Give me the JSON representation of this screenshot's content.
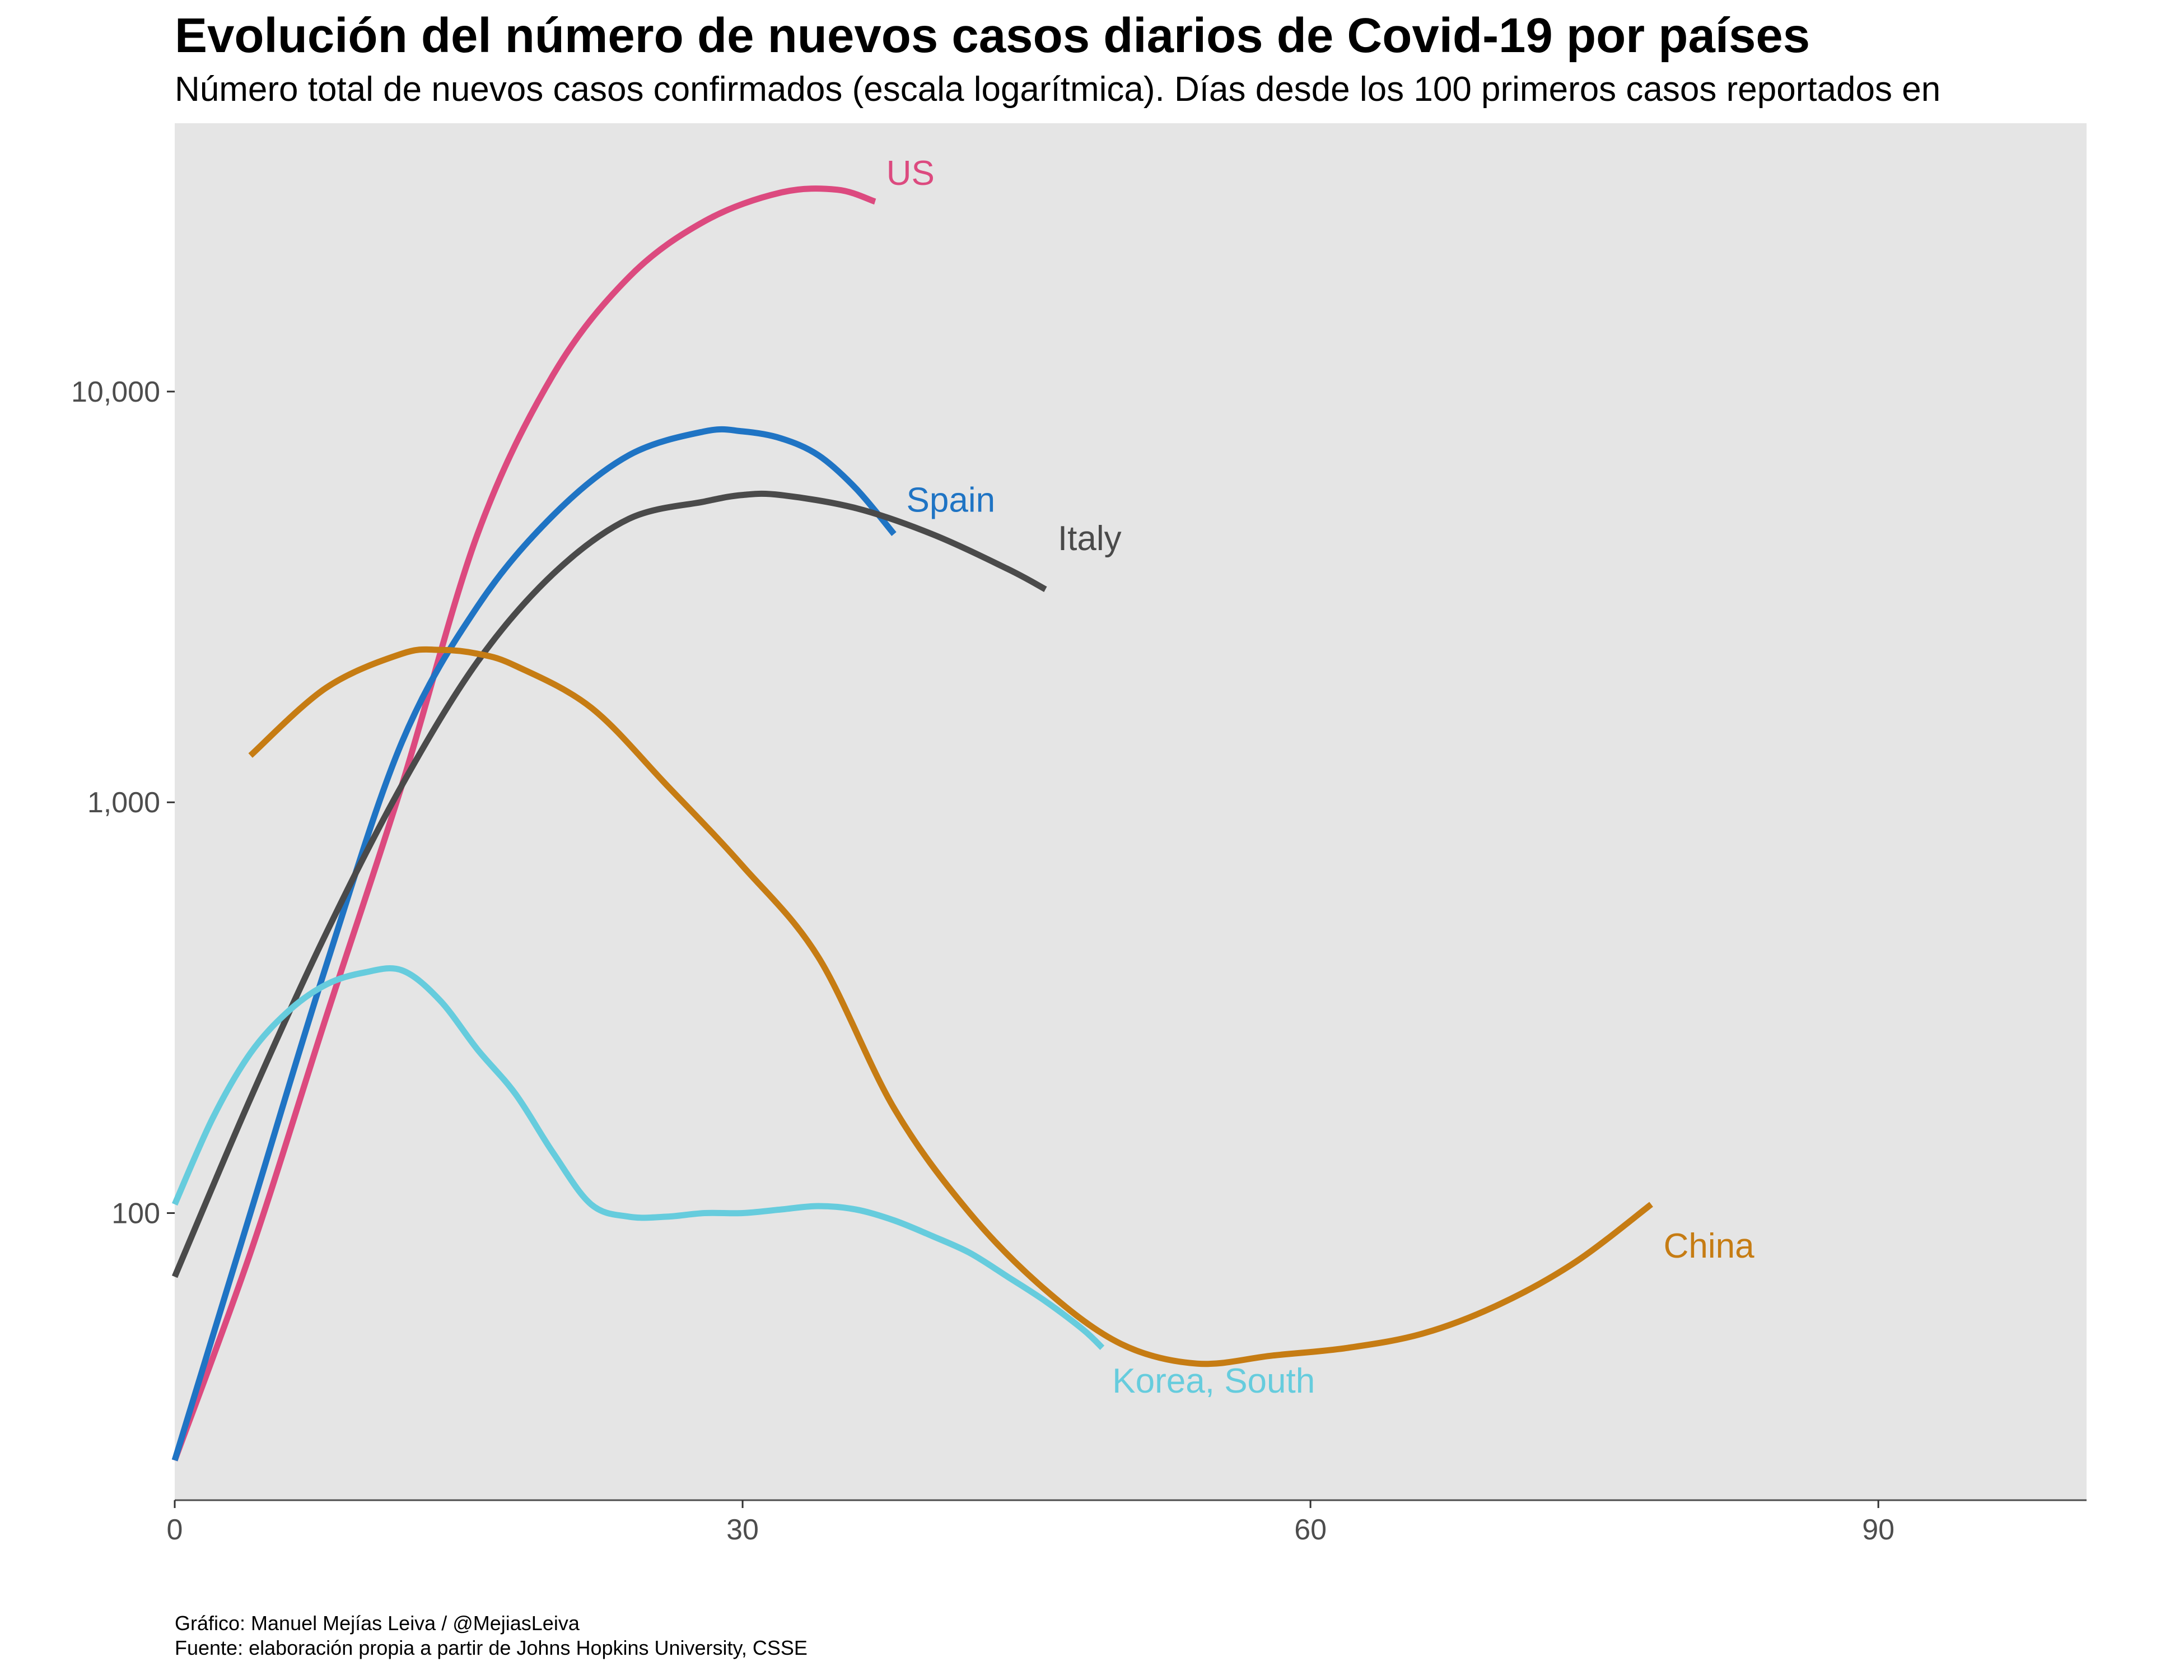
{
  "chart_data": {
    "type": "line",
    "title": "Evolución del número de nuevos casos diarios de Covid-19 por países",
    "subtitle": "Número total de nuevos casos confirmados (escala logarítmica). Días desde los 100 primeros casos reportados en",
    "xlabel": "",
    "ylabel": "",
    "x_scale": "linear",
    "y_scale": "log10",
    "xlim": [
      0,
      101
    ],
    "ylim": [
      20,
      45000
    ],
    "x_ticks": [
      0,
      30,
      60,
      90
    ],
    "x_tick_labels": [
      "0",
      "30",
      "60",
      "90"
    ],
    "y_ticks": [
      100,
      1000,
      10000
    ],
    "y_tick_labels": [
      "100",
      "1,000",
      "10,000"
    ],
    "grid": false,
    "legend": "none (direct labels at line ends)",
    "panel_background": "#e5e5e5",
    "series": [
      {
        "name": "US",
        "color": "#dc4a7f",
        "x": [
          0,
          4,
          8,
          12,
          16,
          20,
          24,
          28,
          32,
          35,
          37
        ],
        "y": [
          25,
          80,
          300,
          1100,
          4500,
          11000,
          19000,
          26000,
          30500,
          31000,
          29000
        ]
      },
      {
        "name": "Spain",
        "color": "#1f74c4",
        "x": [
          0,
          4,
          8,
          12,
          16,
          20,
          24,
          28,
          30,
          32,
          34,
          36,
          38
        ],
        "y": [
          25,
          100,
          400,
          1400,
          3000,
          5000,
          7000,
          8000,
          8000,
          7700,
          7000,
          5800,
          4500
        ]
      },
      {
        "name": "Italy",
        "color": "#4a4a4a",
        "x": [
          0,
          4,
          8,
          12,
          16,
          20,
          24,
          28,
          30,
          32,
          36,
          40,
          44,
          46
        ],
        "y": [
          70,
          190,
          480,
          1100,
          2200,
          3600,
          4900,
          5400,
          5600,
          5600,
          5200,
          4500,
          3700,
          3300
        ]
      },
      {
        "name": "China",
        "color": "#c67c13",
        "x": [
          4,
          8,
          12,
          14,
          16,
          18,
          22,
          26,
          30,
          34,
          38,
          42,
          46,
          50,
          54,
          58,
          62,
          66,
          70,
          74,
          78
        ],
        "y": [
          1300,
          1900,
          2300,
          2350,
          2300,
          2150,
          1700,
          1100,
          700,
          420,
          180,
          100,
          65,
          48,
          43,
          45,
          47,
          51,
          60,
          76,
          105
        ]
      },
      {
        "name": "Korea, South",
        "color": "#66ccdd",
        "x": [
          0,
          2,
          4,
          6,
          8,
          10,
          12,
          14,
          16,
          18,
          20,
          22,
          24,
          26,
          28,
          30,
          32,
          34,
          36,
          38,
          40,
          42,
          44,
          46,
          48,
          49
        ],
        "y": [
          105,
          170,
          245,
          310,
          360,
          385,
          390,
          330,
          250,
          195,
          140,
          105,
          98,
          98,
          100,
          100,
          102,
          104,
          102,
          96,
          88,
          80,
          70,
          61,
          52,
          47
        ]
      }
    ],
    "annotations": [
      "US",
      "Spain",
      "Italy",
      "China",
      "Korea, South"
    ]
  },
  "caption": {
    "line1": "Gráfico: Manuel Mejías Leiva / @MejiasLeiva",
    "line2": "Fuente: elaboración propia a partir de Johns Hopkins University, CSSE"
  }
}
